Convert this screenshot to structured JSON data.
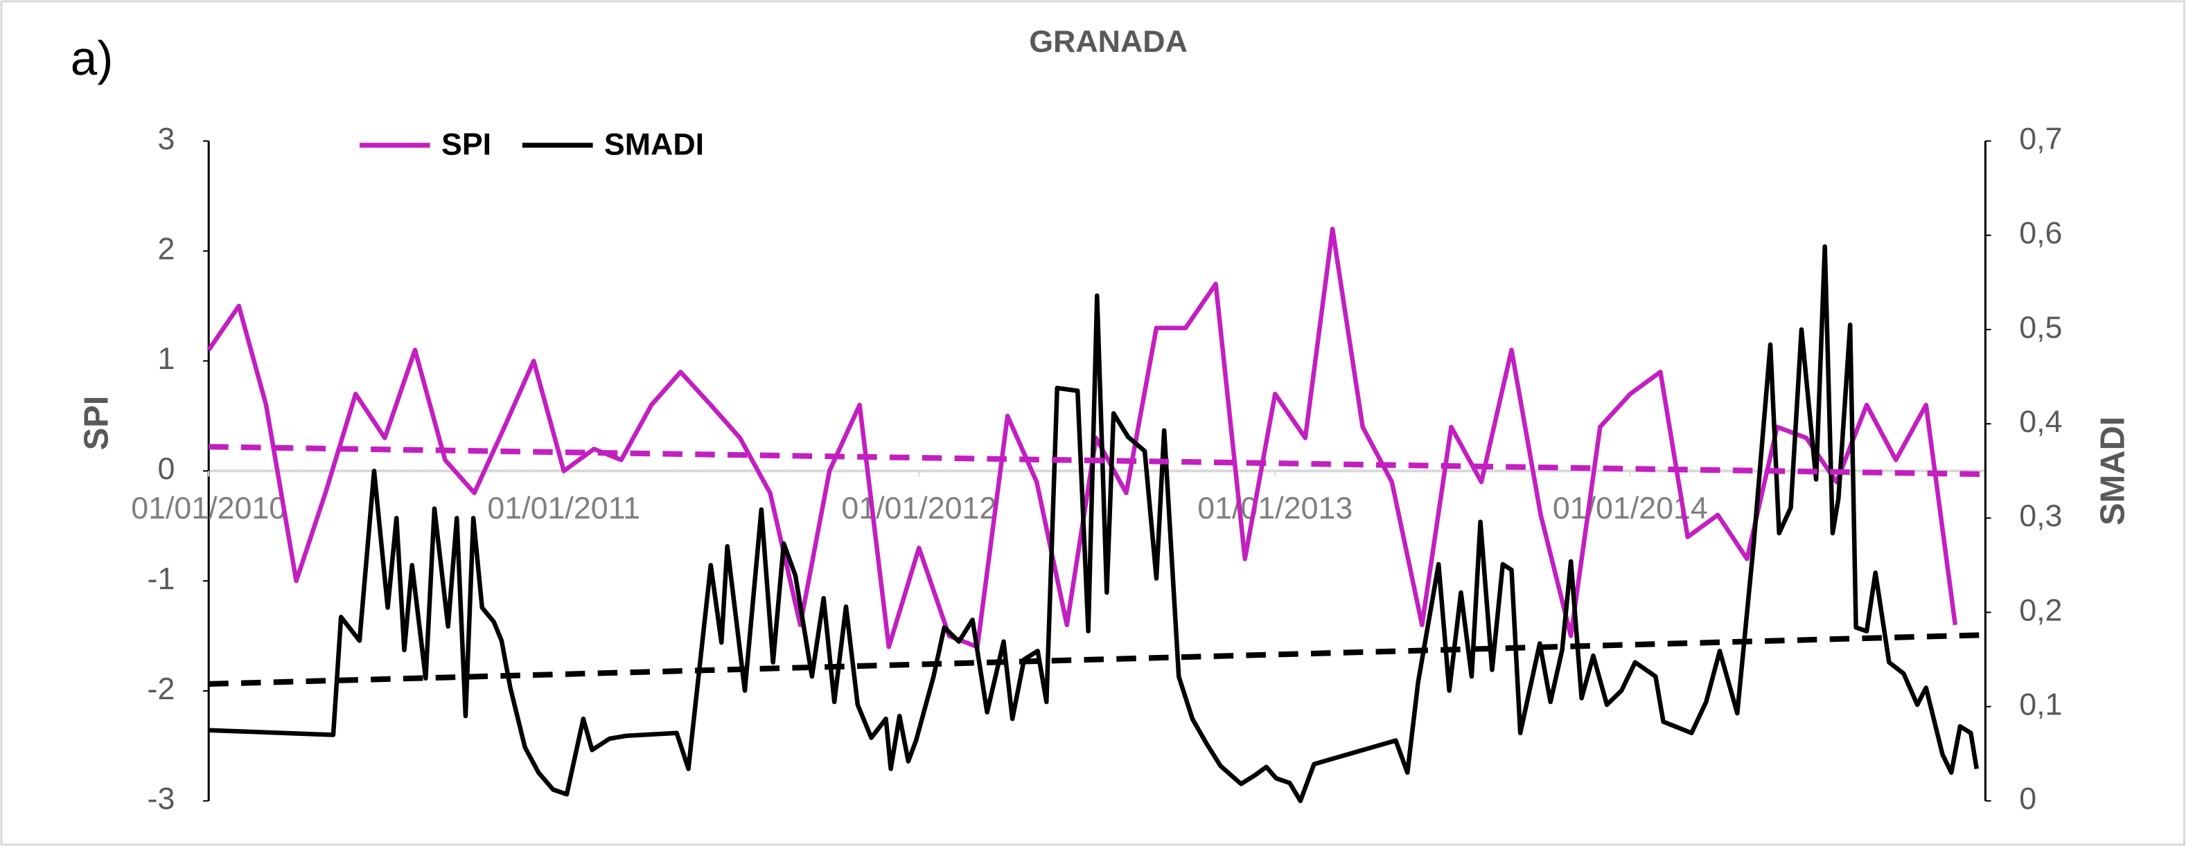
{
  "chart_data": {
    "type": "line",
    "panel_label": "a)",
    "title": "GRANADA",
    "y_label": "SPI",
    "y2_label": "SMADI",
    "xlim": [
      "01/01/2010",
      "01/01/2015"
    ],
    "xticks": [
      "01/01/2010",
      "01/01/2011",
      "01/01/2012",
      "01/01/2013",
      "01/01/2014"
    ],
    "ylim": [
      -3,
      3
    ],
    "yticks": [
      -3,
      -2,
      -1,
      0,
      1,
      2,
      3
    ],
    "y2lim": [
      0,
      0.7
    ],
    "y2ticks": [
      0,
      {
        "value": 0.1,
        "label": "0,1"
      },
      {
        "value": 0.2,
        "label": "0,2"
      },
      {
        "value": 0.3,
        "label": "0,3"
      },
      {
        "value": 0.4,
        "label": "0,4"
      },
      {
        "value": 0.5,
        "label": "0,5"
      },
      {
        "value": 0.6,
        "label": "0,6"
      },
      {
        "value": 0.7,
        "label": "0,7"
      }
    ],
    "legend": "top-left",
    "grid": false,
    "series": [
      {
        "name": "SPI",
        "color": "#c21fc0",
        "axis": "y",
        "x": [
          "01/01/2010",
          "01/02/2010",
          "01/03/2010",
          "01/04/2010",
          "01/05/2010",
          "01/06/2010",
          "01/07/2010",
          "01/08/2010",
          "01/09/2010",
          "01/10/2010",
          "01/11/2010",
          "01/12/2010",
          "01/01/2011",
          "01/02/2011",
          "01/03/2011",
          "01/04/2011",
          "01/05/2011",
          "01/06/2011",
          "01/07/2011",
          "01/08/2011",
          "01/09/2011",
          "01/10/2011",
          "01/11/2011",
          "01/12/2011",
          "01/01/2012",
          "01/02/2012",
          "01/03/2012",
          "01/04/2012",
          "01/05/2012",
          "01/06/2012",
          "01/07/2012",
          "01/08/2012",
          "01/09/2012",
          "01/10/2012",
          "01/11/2012",
          "01/12/2012",
          "01/01/2013",
          "01/02/2013",
          "01/03/2013",
          "01/04/2013",
          "01/05/2013",
          "01/06/2013",
          "01/07/2013",
          "01/08/2013",
          "01/09/2013",
          "01/10/2013",
          "01/11/2013",
          "01/12/2013",
          "01/01/2014",
          "01/02/2014",
          "01/03/2014",
          "01/04/2014",
          "01/05/2014",
          "01/06/2014",
          "01/07/2014",
          "01/08/2014",
          "01/09/2014",
          "01/10/2014",
          "01/11/2014",
          "01/12/2014"
        ],
        "values": [
          1.1,
          1.5,
          0.6,
          -1.0,
          -0.2,
          0.7,
          0.3,
          1.1,
          0.1,
          -0.2,
          0.4,
          1.0,
          0.0,
          0.2,
          0.1,
          0.6,
          0.9,
          0.6,
          0.3,
          -0.2,
          -1.4,
          0.0,
          0.6,
          -1.6,
          -0.7,
          -1.5,
          -1.6,
          0.5,
          -0.1,
          -1.4,
          0.3,
          -0.2,
          1.3,
          1.3,
          1.7,
          -0.8,
          0.7,
          0.3,
          2.2,
          0.4,
          -0.1,
          -1.4,
          0.4,
          -0.1,
          1.1,
          -0.4,
          -1.5,
          0.4,
          0.7,
          0.9,
          -0.6,
          -0.4,
          -0.8,
          0.4,
          0.3,
          -0.1,
          0.6,
          0.1,
          0.6,
          -1.4
        ]
      },
      {
        "name": "SMADI",
        "color": "#000000",
        "axis": "y2",
        "x": [
          "01/01/2010",
          "09/05/2010",
          "17/05/2010",
          "05/06/2010",
          "20/06/2010",
          "04/07/2010",
          "13/07/2010",
          "21/07/2010",
          "29/07/2010",
          "12/08/2010",
          "21/08/2010",
          "04/09/2010",
          "13/09/2010",
          "22/09/2010",
          "30/09/2010",
          "09/10/2010",
          "21/10/2010",
          "29/10/2010",
          "07/11/2010",
          "22/11/2010",
          "06/12/2010",
          "21/12/2010",
          "04/01/2011",
          "21/01/2011",
          "30/01/2011",
          "17/02/2011",
          "06/03/2011",
          "27/04/2011",
          "09/05/2011",
          "01/06/2011",
          "12/06/2011",
          "18/06/2011",
          "06/07/2011",
          "23/07/2011",
          "04/08/2011",
          "15/08/2011",
          "27/08/2011",
          "13/09/2011",
          "25/09/2011",
          "06/10/2011",
          "18/10/2011",
          "30/10/2011",
          "13/11/2011",
          "28/11/2011",
          "03/12/2011",
          "12/12/2011",
          "21/12/2011",
          "29/12/2011",
          "16/01/2012",
          "27/01/2012",
          "11/02/2012",
          "25/02/2012",
          "11/03/2012",
          "28/03/2012",
          "06/04/2012",
          "18/04/2012",
          "02/05/2012",
          "11/05/2012",
          "22/05/2012",
          "12/06/2012",
          "23/06/2012",
          "02/07/2012",
          "12/07/2012",
          "19/07/2012",
          "03/08/2012",
          "20/08/2012",
          "01/09/2012",
          "09/09/2012",
          "24/09/2012",
          "08/10/2012",
          "23/10/2012",
          "06/11/2012",
          "27/11/2012",
          "11/12/2012",
          "23/12/2012",
          "02/01/2013",
          "16/01/2013",
          "27/01/2013",
          "10/02/2013",
          "05/05/2013",
          "17/05/2013",
          "28/05/2013",
          "18/06/2013",
          "29/06/2013",
          "11/07/2013",
          "22/07/2013",
          "31/07/2013",
          "12/08/2013",
          "23/08/2013",
          "01/09/2013",
          "10/09/2013",
          "30/09/2013",
          "11/10/2013",
          "23/10/2013",
          "01/11/2013",
          "12/11/2013",
          "24/11/2013",
          "08/12/2013",
          "23/12/2013",
          "06/01/2014",
          "27/01/2014",
          "04/02/2014",
          "05/03/2014",
          "20/03/2014",
          "03/04/2014",
          "21/04/2014",
          "08/05/2014",
          "25/05/2014",
          "03/06/2014",
          "15/06/2014",
          "26/06/2014",
          "11/07/2014",
          "20/07/2014",
          "28/07/2014",
          "03/08/2014",
          "15/08/2014",
          "21/08/2014",
          "01/09/2014",
          "10/09/2014",
          "24/09/2014",
          "09/10/2014",
          "23/10/2014",
          "01/11/2014",
          "18/11/2014",
          "27/11/2014",
          "06/12/2014",
          "17/12/2014",
          "23/12/2014"
        ],
        "values": [
          0.075,
          0.07,
          0.195,
          0.17,
          0.35,
          0.205,
          0.3,
          0.16,
          0.25,
          0.13,
          0.31,
          0.185,
          0.3,
          0.09,
          0.3,
          0.205,
          0.19,
          0.17,
          0.12,
          0.057,
          0.03,
          0.012,
          0.007,
          0.087,
          0.054,
          0.066,
          0.069,
          0.072,
          0.034,
          0.25,
          0.168,
          0.27,
          0.117,
          0.309,
          0.147,
          0.273,
          0.239,
          0.132,
          0.215,
          0.105,
          0.206,
          0.102,
          0.067,
          0.087,
          0.034,
          0.09,
          0.042,
          0.064,
          0.132,
          0.184,
          0.169,
          0.192,
          0.094,
          0.169,
          0.087,
          0.15,
          0.159,
          0.105,
          0.438,
          0.435,
          0.18,
          0.536,
          0.221,
          0.411,
          0.386,
          0.371,
          0.236,
          0.393,
          0.132,
          0.087,
          0.06,
          0.037,
          0.018,
          0.027,
          0.036,
          0.024,
          0.019,
          0.0,
          0.039,
          0.064,
          0.03,
          0.126,
          0.251,
          0.117,
          0.221,
          0.132,
          0.296,
          0.139,
          0.251,
          0.245,
          0.072,
          0.167,
          0.105,
          0.16,
          0.254,
          0.109,
          0.154,
          0.102,
          0.117,
          0.147,
          0.132,
          0.084,
          0.072,
          0.105,
          0.159,
          0.093,
          0.274,
          0.484,
          0.284,
          0.311,
          0.5,
          0.341,
          0.588,
          0.284,
          0.321,
          0.505,
          0.184,
          0.18,
          0.242,
          0.147,
          0.135,
          0.102,
          0.12,
          0.049,
          0.03,
          0.079,
          0.072,
          0.034
        ]
      },
      {
        "color": "#c21fc0",
        "axis": "y",
        "dash": true,
        "x": [
          "01/01/2010",
          "31/12/2014"
        ],
        "values": [
          0.22,
          -0.03
        ]
      },
      {
        "color": "#000000",
        "axis": "y2",
        "dash": true,
        "x": [
          "01/01/2010",
          "31/12/2014"
        ],
        "values": [
          0.124,
          0.176
        ]
      }
    ]
  }
}
